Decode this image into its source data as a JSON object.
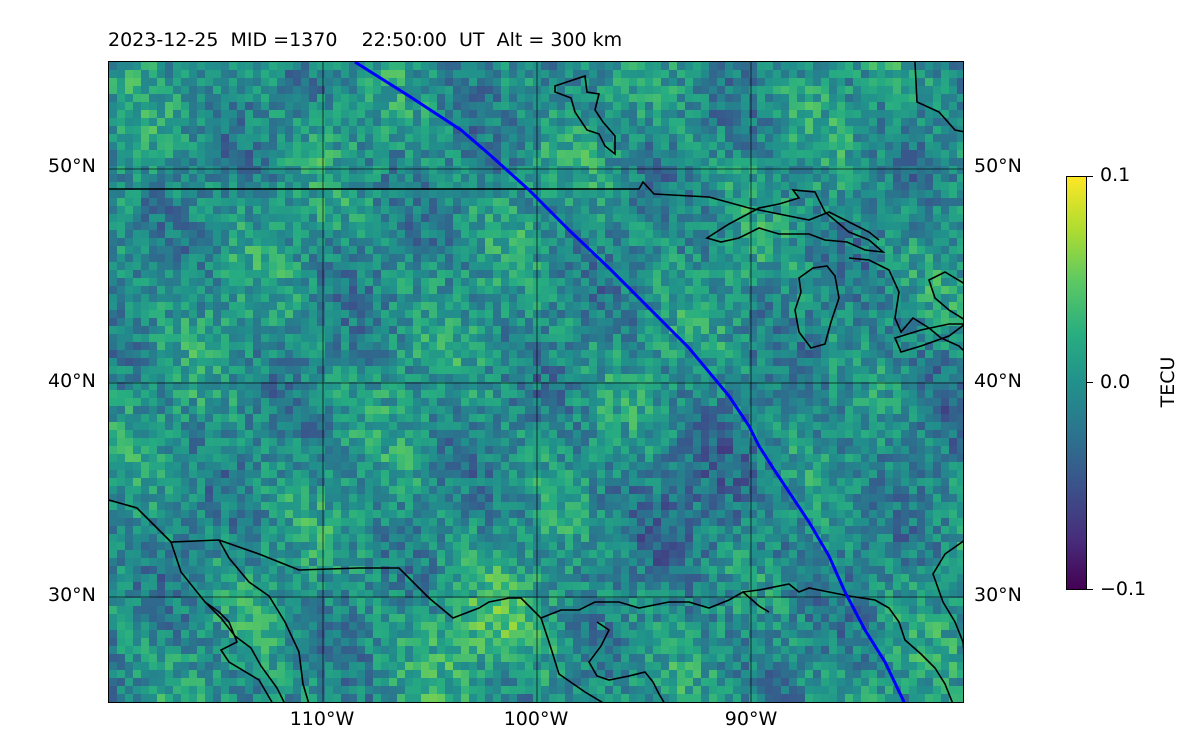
{
  "title": "2023-12-25  MID =1370    22:50:00  UT  Alt = 300 km",
  "map": {
    "lon_range": [
      -120,
      -80
    ],
    "lat_range": [
      25,
      55
    ],
    "projection": "plate carree",
    "gridlines": true,
    "lat_ticks": [
      {
        "value": 50,
        "label": "50°N"
      },
      {
        "value": 40,
        "label": "40°N"
      },
      {
        "value": 30,
        "label": "30°N"
      }
    ],
    "lon_ticks": [
      {
        "value": -110,
        "label": "110°W"
      },
      {
        "value": -100,
        "label": "100°W"
      },
      {
        "value": -90,
        "label": "90°W"
      }
    ],
    "field": "TEC perturbation (viridis)",
    "satellite_track_color": "#0000ff",
    "coastline_color": "#000000"
  },
  "colorbar": {
    "label": "TECU",
    "min": -0.1,
    "max": 0.1,
    "ticks": [
      {
        "value": 0.1,
        "label": "0.1"
      },
      {
        "value": 0.0,
        "label": "0.0"
      },
      {
        "value": -0.1,
        "label": "−0.1"
      }
    ],
    "colormap": "viridis"
  }
}
